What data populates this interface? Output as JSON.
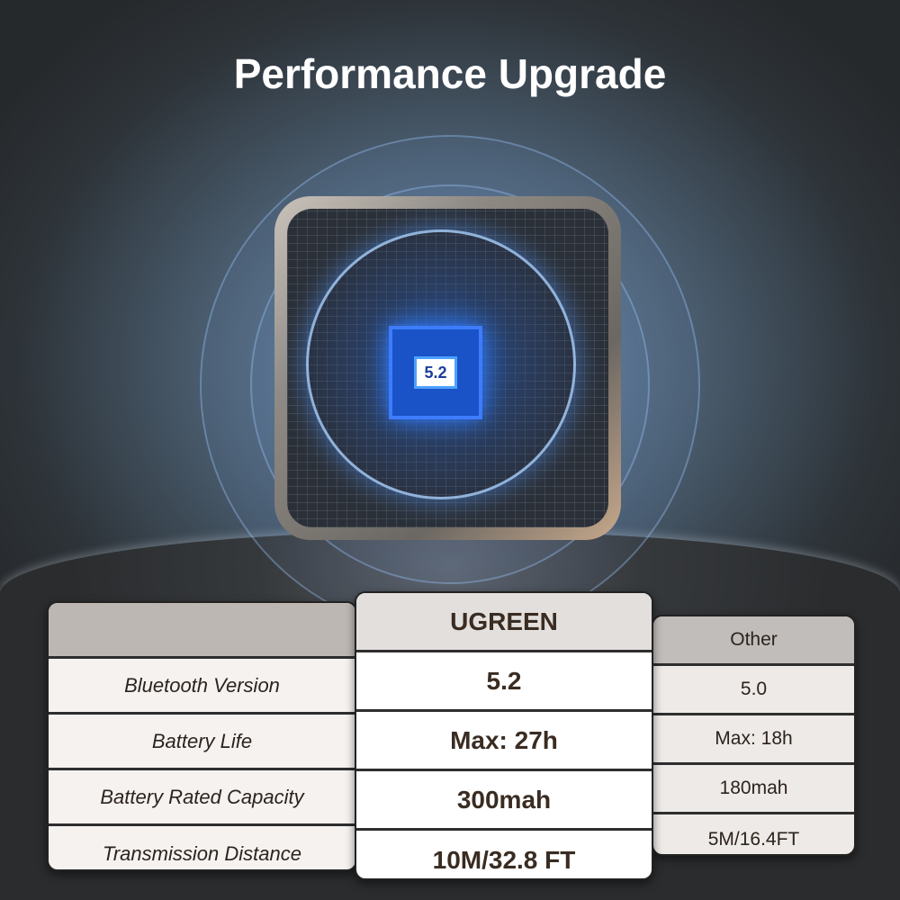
{
  "title": "Performance Upgrade",
  "chip_label": "5.2",
  "colors": {
    "chip": "#1a53c8",
    "glow": "#2f7bff",
    "ugreen_text": "#3a2c22"
  },
  "table": {
    "columns": [
      "",
      "UGREEN",
      "Other"
    ],
    "rows": [
      {
        "feature": "Bluetooth Version",
        "ugreen": "5.2",
        "other": "5.0"
      },
      {
        "feature": "Battery Life",
        "ugreen": "Max: 27h",
        "other": "Max: 18h"
      },
      {
        "feature": "Battery Rated Capacity",
        "ugreen": "300mah",
        "other": "180mah"
      },
      {
        "feature": "Transmission Distance",
        "ugreen": "10M/32.8 FT",
        "other": "5M/16.4FT"
      }
    ]
  }
}
